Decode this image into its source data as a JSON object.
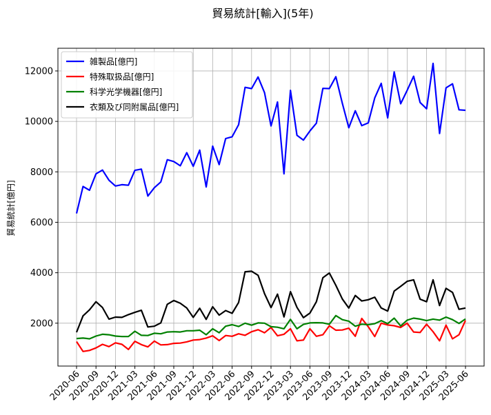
{
  "chart_data": {
    "type": "line",
    "title": "貿易統計[輸入](5年)",
    "xlabel": "",
    "ylabel": "貿易統計[億円]",
    "ylim": [
      300,
      12900
    ],
    "yticks": [
      2000,
      4000,
      6000,
      8000,
      10000,
      12000
    ],
    "grid": true,
    "legend_position": "top-left",
    "x": [
      "2020-06",
      "2020-07",
      "2020-08",
      "2020-09",
      "2020-10",
      "2020-11",
      "2020-12",
      "2021-01",
      "2021-02",
      "2021-03",
      "2021-04",
      "2021-05",
      "2021-06",
      "2021-07",
      "2021-08",
      "2021-09",
      "2021-10",
      "2021-11",
      "2021-12",
      "2022-01",
      "2022-02",
      "2022-03",
      "2022-04",
      "2022-05",
      "2022-06",
      "2022-07",
      "2022-08",
      "2022-09",
      "2022-10",
      "2022-11",
      "2022-12",
      "2023-01",
      "2023-02",
      "2023-03",
      "2023-04",
      "2023-05",
      "2023-06",
      "2023-07",
      "2023-08",
      "2023-09",
      "2023-10",
      "2023-11",
      "2023-12",
      "2024-01",
      "2024-02",
      "2024-03",
      "2024-04",
      "2024-05",
      "2024-06",
      "2024-07",
      "2024-08",
      "2024-09",
      "2024-10",
      "2024-11",
      "2024-12",
      "2025-01",
      "2025-02",
      "2025-03",
      "2025-04",
      "2025-05",
      "2025-06"
    ],
    "xtick_labels": [
      "2020-06",
      "2020-09",
      "2020-12",
      "2021-03",
      "2021-06",
      "2021-09",
      "2021-12",
      "2022-03",
      "2022-06",
      "2022-09",
      "2022-12",
      "2023-03",
      "2023-06",
      "2023-09",
      "2023-12",
      "2024-03",
      "2024-06",
      "2024-09",
      "2024-12",
      "2025-03",
      "2025-06"
    ],
    "series": [
      {
        "name": "雑製品[億円]",
        "color": "#0000ff",
        "values": [
          6350,
          7420,
          7270,
          7920,
          8070,
          7670,
          7440,
          7490,
          7470,
          8060,
          8110,
          7040,
          7370,
          7600,
          8480,
          8410,
          8240,
          8760,
          8220,
          8860,
          7400,
          9020,
          8290,
          9320,
          9390,
          9870,
          11350,
          11300,
          11760,
          11140,
          9820,
          10770,
          7920,
          11230,
          9450,
          9260,
          9620,
          9930,
          11310,
          11300,
          11770,
          10720,
          9750,
          10420,
          9830,
          9940,
          10930,
          11510,
          10140,
          11960,
          10700,
          11230,
          11790,
          10750,
          10500,
          12300,
          9520,
          11330,
          11490,
          10460,
          10440
        ]
      },
      {
        "name": "特殊取扱品[億円]",
        "color": "#ff0000",
        "values": [
          1270,
          880,
          920,
          1020,
          1160,
          1070,
          1220,
          1160,
          960,
          1280,
          1150,
          1060,
          1290,
          1140,
          1150,
          1200,
          1210,
          1260,
          1330,
          1350,
          1410,
          1500,
          1310,
          1510,
          1480,
          1580,
          1520,
          1660,
          1740,
          1620,
          1830,
          1500,
          1560,
          1780,
          1300,
          1330,
          1780,
          1480,
          1540,
          1900,
          1720,
          1730,
          1800,
          1480,
          2190,
          1860,
          1470,
          2000,
          1930,
          1900,
          1830,
          2000,
          1650,
          1630,
          1960,
          1660,
          1300,
          1920,
          1380,
          1540,
          2110
        ]
      },
      {
        "name": "科学光学機器[億円]",
        "color": "#008000",
        "values": [
          1390,
          1410,
          1380,
          1490,
          1560,
          1540,
          1490,
          1470,
          1470,
          1680,
          1520,
          1510,
          1600,
          1580,
          1650,
          1660,
          1650,
          1700,
          1700,
          1720,
          1540,
          1780,
          1620,
          1880,
          1940,
          1870,
          2000,
          1920,
          2010,
          2000,
          1860,
          1840,
          1780,
          2150,
          1780,
          1950,
          2010,
          2020,
          2010,
          1960,
          2300,
          2140,
          2080,
          1880,
          1960,
          1940,
          1980,
          2100,
          1980,
          2200,
          1890,
          2120,
          2200,
          2160,
          2100,
          2160,
          2120,
          2240,
          2140,
          1990,
          2170
        ]
      },
      {
        "name": "衣類及び同附属品[億円]",
        "color": "#000000",
        "values": [
          1640,
          2290,
          2530,
          2850,
          2620,
          2160,
          2240,
          2230,
          2340,
          2430,
          2510,
          1850,
          1880,
          2010,
          2750,
          2900,
          2790,
          2600,
          2230,
          2590,
          2150,
          2650,
          2320,
          2500,
          2390,
          2820,
          4040,
          4060,
          3900,
          3170,
          2620,
          3150,
          2250,
          3250,
          2630,
          2220,
          2400,
          2850,
          3800,
          3990,
          3500,
          2960,
          2600,
          3100,
          2880,
          2930,
          3030,
          2600,
          2480,
          3270,
          3460,
          3660,
          3720,
          2950,
          2850,
          3720,
          2700,
          3380,
          3220,
          2550,
          2600
        ]
      }
    ]
  }
}
